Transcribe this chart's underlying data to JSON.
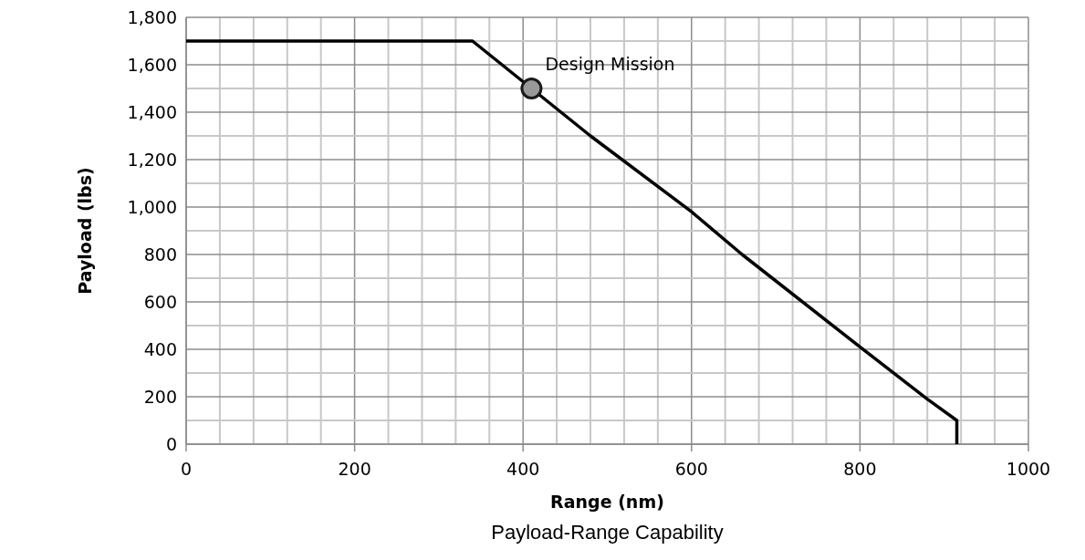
{
  "chart_data": {
    "type": "line",
    "title": "Payload-Range Capability",
    "xlabel": "Range (nm)",
    "ylabel": "Payload (lbs)",
    "xlim": [
      0,
      1000
    ],
    "ylim": [
      0,
      1800
    ],
    "xticks": [
      0,
      {
        "value": 40,
        "label": null
      },
      {
        "value": 80,
        "label": null
      },
      {
        "value": 120,
        "label": null
      },
      {
        "value": 160,
        "label": null
      },
      200,
      {
        "value": 240,
        "label": null
      },
      {
        "value": 280,
        "label": null
      },
      {
        "value": 320,
        "label": null
      },
      {
        "value": 360,
        "label": null
      },
      400,
      {
        "value": 440,
        "label": null
      },
      {
        "value": 480,
        "label": null
      },
      {
        "value": 520,
        "label": null
      },
      {
        "value": 560,
        "label": null
      },
      600,
      {
        "value": 640,
        "label": null
      },
      {
        "value": 680,
        "label": null
      },
      {
        "value": 720,
        "label": null
      },
      {
        "value": 760,
        "label": null
      },
      800,
      {
        "value": 840,
        "label": null
      },
      {
        "value": 880,
        "label": null
      },
      {
        "value": 920,
        "label": null
      },
      {
        "value": 960,
        "label": null
      },
      1000
    ],
    "yticks": [
      0,
      {
        "value": 100,
        "label": null
      },
      200,
      {
        "value": 300,
        "label": null
      },
      400,
      {
        "value": 500,
        "label": null
      },
      600,
      {
        "value": 700,
        "label": null
      },
      800,
      {
        "value": 900,
        "label": null
      },
      {
        "value": 1000,
        "label": "1,000"
      },
      {
        "value": 1100,
        "label": null
      },
      {
        "value": 1200,
        "label": "1,200"
      },
      {
        "value": 1300,
        "label": null
      },
      {
        "value": 1400,
        "label": "1,400"
      },
      {
        "value": 1500,
        "label": null
      },
      {
        "value": 1600,
        "label": "1,600"
      },
      {
        "value": 1700,
        "label": null
      },
      {
        "value": 1800,
        "label": "1,800"
      }
    ],
    "grid": true,
    "series": [
      {
        "color": "#000000",
        "marker": "none",
        "x": [
          0,
          340,
          480,
          600,
          660,
          800,
          880,
          915,
          915
        ],
        "values": [
          1700,
          1700,
          1300,
          980,
          800,
          410,
          190,
          100,
          0
        ]
      },
      {
        "type": "scatter",
        "color": "#999999",
        "marker": "circle",
        "x": [
          410
        ],
        "values": [
          1500
        ]
      }
    ],
    "annotations": [
      {
        "text": "Design Mission",
        "x": 410,
        "y": 1500
      }
    ]
  }
}
